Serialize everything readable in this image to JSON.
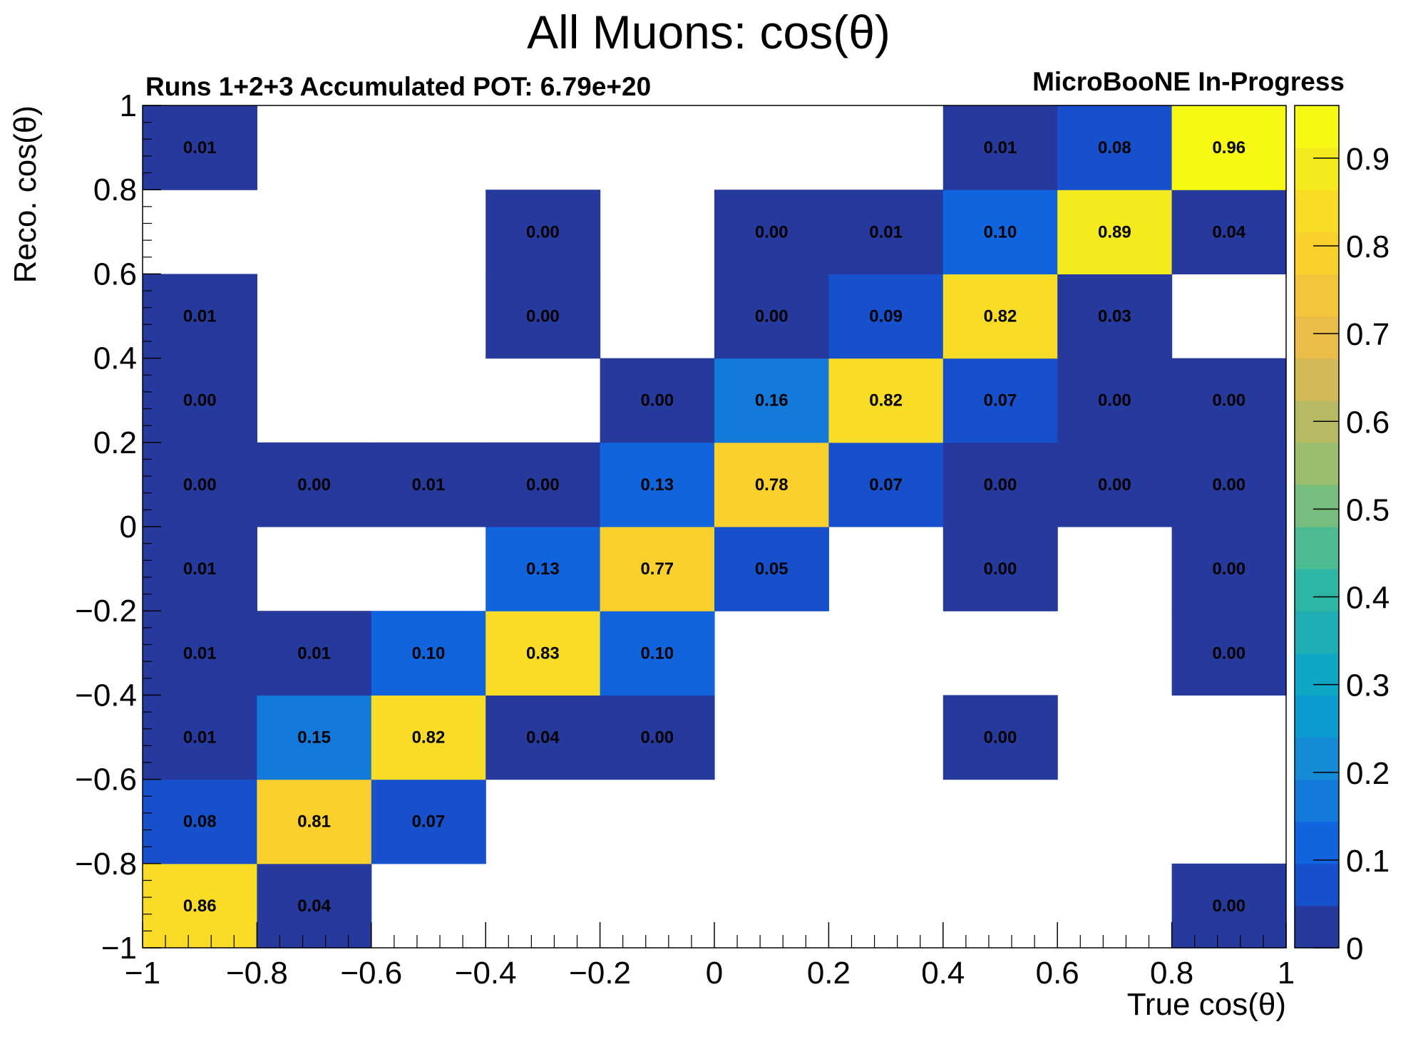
{
  "chart_data": {
    "type": "heatmap",
    "title": "All Muons: cos(θ)",
    "subtitle_left": "Runs 1+2+3 Accumulated POT: 6.79e+20",
    "subtitle_right": "MicroBooNE In-Progress",
    "xlabel": "True cos(θ)",
    "ylabel": "Reco. cos(θ)",
    "xlim": [
      -1,
      1
    ],
    "ylim": [
      -1,
      1
    ],
    "x_ticks": [
      -1,
      -0.8,
      -0.6,
      -0.4,
      -0.2,
      0,
      0.2,
      0.4,
      0.6,
      0.8,
      1
    ],
    "y_ticks": [
      -1,
      -0.8,
      -0.6,
      -0.4,
      -0.2,
      0,
      0.2,
      0.4,
      0.6,
      0.8,
      1
    ],
    "x_tick_labels": [
      "−1",
      "−0.8",
      "−0.6",
      "−0.4",
      "−0.2",
      "0",
      "0.2",
      "0.4",
      "0.6",
      "0.8",
      "1"
    ],
    "y_tick_labels": [
      "−1",
      "−0.8",
      "−0.6",
      "−0.4",
      "−0.2",
      "0",
      "0.2",
      "0.4",
      "0.6",
      "0.8",
      "1"
    ],
    "x_bin_edges": [
      -1,
      -0.8,
      -0.6,
      -0.4,
      -0.2,
      0,
      0.2,
      0.4,
      0.6,
      0.8,
      1
    ],
    "y_bin_edges": [
      -1,
      -0.8,
      -0.6,
      -0.4,
      -0.2,
      0,
      0.2,
      0.4,
      0.6,
      0.8,
      1
    ],
    "cells": [
      {
        "xi": 0,
        "yi": 0,
        "v": 0.86,
        "label": "0.86"
      },
      {
        "xi": 1,
        "yi": 0,
        "v": 0.04,
        "label": "0.04"
      },
      {
        "xi": 9,
        "yi": 0,
        "v": 0.0,
        "label": "0.00"
      },
      {
        "xi": 0,
        "yi": 1,
        "v": 0.08,
        "label": "0.08"
      },
      {
        "xi": 1,
        "yi": 1,
        "v": 0.81,
        "label": "0.81"
      },
      {
        "xi": 2,
        "yi": 1,
        "v": 0.07,
        "label": "0.07"
      },
      {
        "xi": 0,
        "yi": 2,
        "v": 0.01,
        "label": "0.01"
      },
      {
        "xi": 1,
        "yi": 2,
        "v": 0.15,
        "label": "0.15"
      },
      {
        "xi": 2,
        "yi": 2,
        "v": 0.82,
        "label": "0.82"
      },
      {
        "xi": 3,
        "yi": 2,
        "v": 0.04,
        "label": "0.04"
      },
      {
        "xi": 4,
        "yi": 2,
        "v": 0.0,
        "label": "0.00"
      },
      {
        "xi": 7,
        "yi": 2,
        "v": 0.0,
        "label": "0.00"
      },
      {
        "xi": 0,
        "yi": 3,
        "v": 0.01,
        "label": "0.01"
      },
      {
        "xi": 1,
        "yi": 3,
        "v": 0.01,
        "label": "0.01"
      },
      {
        "xi": 2,
        "yi": 3,
        "v": 0.1,
        "label": "0.10"
      },
      {
        "xi": 3,
        "yi": 3,
        "v": 0.83,
        "label": "0.83"
      },
      {
        "xi": 4,
        "yi": 3,
        "v": 0.1,
        "label": "0.10"
      },
      {
        "xi": 9,
        "yi": 3,
        "v": 0.0,
        "label": "0.00"
      },
      {
        "xi": 0,
        "yi": 4,
        "v": 0.01,
        "label": "0.01"
      },
      {
        "xi": 3,
        "yi": 4,
        "v": 0.13,
        "label": "0.13"
      },
      {
        "xi": 4,
        "yi": 4,
        "v": 0.77,
        "label": "0.77"
      },
      {
        "xi": 5,
        "yi": 4,
        "v": 0.05,
        "label": "0.05"
      },
      {
        "xi": 7,
        "yi": 4,
        "v": 0.0,
        "label": "0.00"
      },
      {
        "xi": 9,
        "yi": 4,
        "v": 0.0,
        "label": "0.00"
      },
      {
        "xi": 0,
        "yi": 5,
        "v": 0.0,
        "label": "0.00"
      },
      {
        "xi": 1,
        "yi": 5,
        "v": 0.0,
        "label": "0.00"
      },
      {
        "xi": 2,
        "yi": 5,
        "v": 0.01,
        "label": "0.01"
      },
      {
        "xi": 3,
        "yi": 5,
        "v": 0.0,
        "label": "0.00"
      },
      {
        "xi": 4,
        "yi": 5,
        "v": 0.13,
        "label": "0.13"
      },
      {
        "xi": 5,
        "yi": 5,
        "v": 0.78,
        "label": "0.78"
      },
      {
        "xi": 6,
        "yi": 5,
        "v": 0.07,
        "label": "0.07"
      },
      {
        "xi": 7,
        "yi": 5,
        "v": 0.0,
        "label": "0.00"
      },
      {
        "xi": 8,
        "yi": 5,
        "v": 0.0,
        "label": "0.00"
      },
      {
        "xi": 9,
        "yi": 5,
        "v": 0.0,
        "label": "0.00"
      },
      {
        "xi": 0,
        "yi": 6,
        "v": 0.0,
        "label": "0.00"
      },
      {
        "xi": 4,
        "yi": 6,
        "v": 0.0,
        "label": "0.00"
      },
      {
        "xi": 5,
        "yi": 6,
        "v": 0.16,
        "label": "0.16"
      },
      {
        "xi": 6,
        "yi": 6,
        "v": 0.82,
        "label": "0.82"
      },
      {
        "xi": 7,
        "yi": 6,
        "v": 0.07,
        "label": "0.07"
      },
      {
        "xi": 8,
        "yi": 6,
        "v": 0.0,
        "label": "0.00"
      },
      {
        "xi": 9,
        "yi": 6,
        "v": 0.0,
        "label": "0.00"
      },
      {
        "xi": 0,
        "yi": 7,
        "v": 0.01,
        "label": "0.01"
      },
      {
        "xi": 3,
        "yi": 7,
        "v": 0.0,
        "label": "0.00"
      },
      {
        "xi": 5,
        "yi": 7,
        "v": 0.0,
        "label": "0.00"
      },
      {
        "xi": 6,
        "yi": 7,
        "v": 0.09,
        "label": "0.09"
      },
      {
        "xi": 7,
        "yi": 7,
        "v": 0.82,
        "label": "0.82"
      },
      {
        "xi": 8,
        "yi": 7,
        "v": 0.03,
        "label": "0.03"
      },
      {
        "xi": 3,
        "yi": 8,
        "v": 0.0,
        "label": "0.00"
      },
      {
        "xi": 5,
        "yi": 8,
        "v": 0.0,
        "label": "0.00"
      },
      {
        "xi": 6,
        "yi": 8,
        "v": 0.01,
        "label": "0.01"
      },
      {
        "xi": 7,
        "yi": 8,
        "v": 0.1,
        "label": "0.10"
      },
      {
        "xi": 8,
        "yi": 8,
        "v": 0.89,
        "label": "0.89"
      },
      {
        "xi": 9,
        "yi": 8,
        "v": 0.04,
        "label": "0.04"
      },
      {
        "xi": 0,
        "yi": 9,
        "v": 0.01,
        "label": "0.01"
      },
      {
        "xi": 7,
        "yi": 9,
        "v": 0.01,
        "label": "0.01"
      },
      {
        "xi": 8,
        "yi": 9,
        "v": 0.08,
        "label": "0.08"
      },
      {
        "xi": 9,
        "yi": 9,
        "v": 0.96,
        "label": "0.96"
      }
    ],
    "colorbar": {
      "range": [
        0,
        0.96
      ],
      "ticks": [
        0,
        0.1,
        0.2,
        0.3,
        0.4,
        0.5,
        0.6,
        0.7,
        0.8,
        0.9
      ],
      "tick_labels": [
        "0",
        "0.1",
        "0.2",
        "0.3",
        "0.4",
        "0.5",
        "0.6",
        "0.7",
        "0.8",
        "0.9"
      ],
      "palette": [
        "#263a9e",
        "#1650cc",
        "#1065df",
        "#137ada",
        "#148bd4",
        "#0a9ccf",
        "#0fa7c4",
        "#20aeb5",
        "#2cb6a3",
        "#4dbb92",
        "#76bd7e",
        "#9bbd6e",
        "#b8ba63",
        "#d3ba56",
        "#e9bd47",
        "#f4c53b",
        "#fbcf2c",
        "#f8dc26",
        "#f5ea1d",
        "#f8f815"
      ]
    },
    "grid": false,
    "legend": "colorbar-right"
  }
}
